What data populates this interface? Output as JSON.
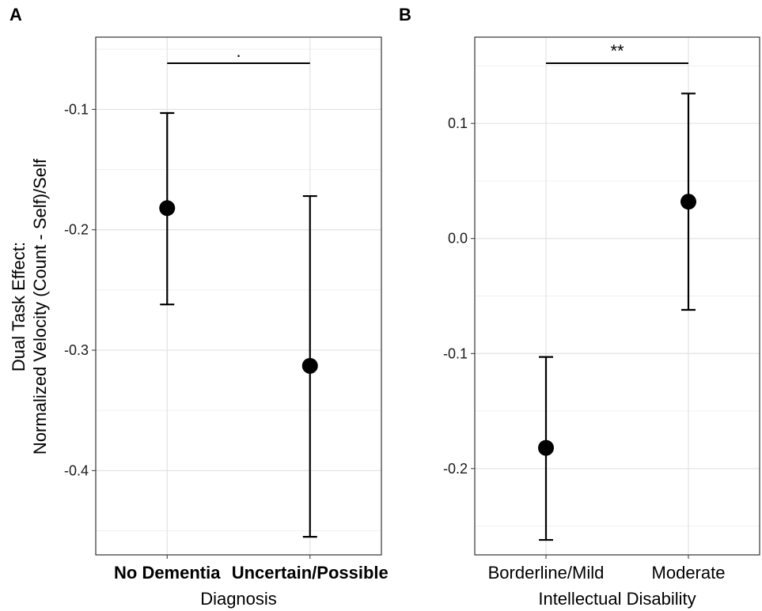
{
  "ylabel_lines": [
    "Dual Task Effect:",
    "Normalized Velocity (Count - Self)/Self"
  ],
  "chart_data": [
    {
      "panel": "A",
      "type": "scatter",
      "title": "",
      "xlabel": "Diagnosis",
      "ylabel": "Dual Task Effect: Normalized Velocity (Count - Self)/Self",
      "categories": [
        "No Dementia",
        "Uncertain/Possible"
      ],
      "values": [
        -0.182,
        -0.313
      ],
      "lower": [
        -0.262,
        -0.455
      ],
      "upper": [
        -0.103,
        -0.172
      ],
      "ylim": [
        -0.47,
        -0.04
      ],
      "yticks": [
        -0.1,
        -0.2,
        -0.3,
        -0.4
      ],
      "ytick_labels": [
        "-0.1",
        "-0.2",
        "-0.3",
        "-0.4"
      ],
      "significance": ".",
      "grid": true,
      "bold_categories": true
    },
    {
      "panel": "B",
      "type": "scatter",
      "title": "",
      "xlabel": "Intellectual Disability",
      "ylabel": "",
      "categories": [
        "Borderline/Mild",
        "Moderate"
      ],
      "values": [
        -0.182,
        0.032
      ],
      "lower": [
        -0.262,
        -0.062
      ],
      "upper": [
        -0.103,
        0.126
      ],
      "ylim": [
        -0.275,
        0.175
      ],
      "yticks": [
        0.1,
        0.0,
        -0.1,
        -0.2
      ],
      "ytick_labels": [
        "0.1",
        "0.0",
        "-0.1",
        "-0.2"
      ],
      "significance": "**",
      "grid": true,
      "bold_categories": false
    }
  ]
}
